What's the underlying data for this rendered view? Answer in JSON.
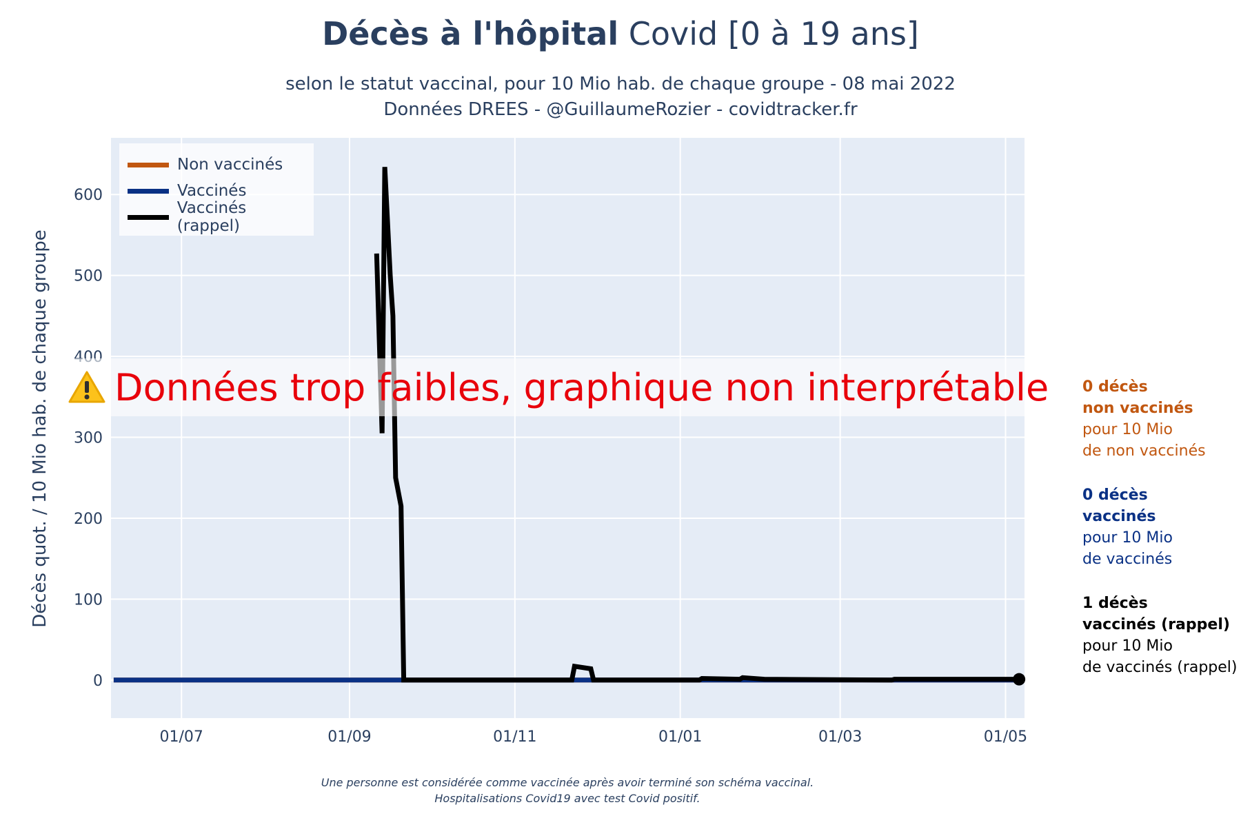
{
  "header": {
    "title_bold": "Décès à l'hôpital",
    "title_rest": "Covid [0 à 19 ans]",
    "subtitle1": "selon le statut vaccinal, pour 10 Mio hab. de chaque groupe - 08 mai 2022",
    "subtitle2": "Données DREES - @GuillaumeRozier - covidtracker.fr"
  },
  "warning": {
    "icon": "warning-icon",
    "text": "Données trop faibles, graphique non interprétable"
  },
  "annotations": [
    {
      "line1": "0 décès",
      "line2": "non vaccinés",
      "line3": "pour 10 Mio",
      "line4": "de non vaccinés",
      "color": "#c15710"
    },
    {
      "line1": "0 décès",
      "line2": "vaccinés",
      "line3": "pour 10 Mio",
      "line4": "de vaccinés",
      "color": "#0a3185"
    },
    {
      "line1": "1 décès",
      "line2": "vaccinés (rappel)",
      "line3": "pour 10 Mio",
      "line4": "de vaccinés (rappel)",
      "color": "#000000"
    }
  ],
  "footnote": {
    "line1": "Une personne est considérée comme vaccinée après avoir terminé son schéma vaccinal.",
    "line2": "Hospitalisations Covid19 avec test Covid positif."
  },
  "chart_data": {
    "type": "line",
    "title": "Décès à l'hôpital Covid [0 à 19 ans]",
    "ylabel": "Décès quot. / 10 Mio hab. de chaque groupe",
    "xlabel": "",
    "ylim": [
      -47,
      670
    ],
    "xlim": [
      "2021-06-05",
      "2022-05-08"
    ],
    "x_ticks": [
      {
        "date": "2021-07-01",
        "label": "01/07"
      },
      {
        "date": "2021-09-01",
        "label": "01/09"
      },
      {
        "date": "2021-11-01",
        "label": "01/11"
      },
      {
        "date": "2022-01-01",
        "label": "01/01"
      },
      {
        "date": "2022-03-01",
        "label": "01/03"
      },
      {
        "date": "2022-05-01",
        "label": "01/05"
      }
    ],
    "y_ticks": [
      0,
      100,
      200,
      300,
      400,
      500,
      600
    ],
    "grid": true,
    "legend": "top-left",
    "series": [
      {
        "name": "Non vaccinés",
        "color": "#c15710",
        "width": 7,
        "points": [
          [
            "2021-06-06",
            0
          ],
          [
            "2022-05-06",
            0
          ]
        ]
      },
      {
        "name": "Vaccinés",
        "color": "#0a3185",
        "width": 7,
        "points": [
          [
            "2021-06-06",
            0
          ],
          [
            "2022-05-06",
            0
          ]
        ]
      },
      {
        "name": "Vaccinés (rappel)",
        "color": "#000000",
        "width": 7,
        "end_marker": true,
        "points": [
          [
            "2021-09-11",
            527
          ],
          [
            "2021-09-13",
            305
          ],
          [
            "2021-09-14",
            634
          ],
          [
            "2021-09-16",
            500
          ],
          [
            "2021-09-17",
            450
          ],
          [
            "2021-09-18",
            250
          ],
          [
            "2021-09-20",
            215
          ],
          [
            "2021-09-21",
            0
          ],
          [
            "2021-11-22",
            0
          ],
          [
            "2021-11-23",
            17
          ],
          [
            "2021-11-29",
            14
          ],
          [
            "2021-11-30",
            0
          ],
          [
            "2022-01-08",
            0
          ],
          [
            "2022-01-09",
            2
          ],
          [
            "2022-01-23",
            1
          ],
          [
            "2022-01-24",
            3
          ],
          [
            "2022-02-01",
            1
          ],
          [
            "2022-03-20",
            0
          ],
          [
            "2022-03-21",
            1
          ],
          [
            "2022-05-06",
            1
          ]
        ]
      }
    ]
  }
}
